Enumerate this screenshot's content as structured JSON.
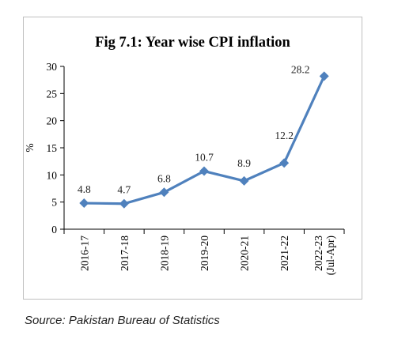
{
  "chart_data": {
    "type": "line",
    "title": "Fig 7.1: Year wise CPI inflation",
    "ylabel": "%",
    "xlabel": "",
    "categories": [
      "2016-17",
      "2017-18",
      "2018-19",
      "2019-20",
      "2020-21",
      "2021-22",
      "2022-23 (Jul-Apr)"
    ],
    "category_lines": [
      [
        "2016-17"
      ],
      [
        "2017-18"
      ],
      [
        "2018-19"
      ],
      [
        "2019-20"
      ],
      [
        "2020-21"
      ],
      [
        "2021-22"
      ],
      [
        "2022-23",
        "(Jul-Apr)"
      ]
    ],
    "series": [
      {
        "values": [
          4.8,
          4.7,
          6.8,
          10.7,
          8.9,
          12.2,
          28.2
        ]
      }
    ],
    "data_labels": [
      "4.8",
      "4.7",
      "6.8",
      "10.7",
      "8.9",
      "12.2",
      "28.2"
    ],
    "ylim": [
      0,
      30
    ],
    "yticks": [
      0,
      5,
      10,
      15,
      20,
      25,
      30
    ],
    "grid": false,
    "legend": "none",
    "line_color": "#4f81bd",
    "marker": "diamond"
  },
  "source": "Source: Pakistan Bureau of Statistics"
}
